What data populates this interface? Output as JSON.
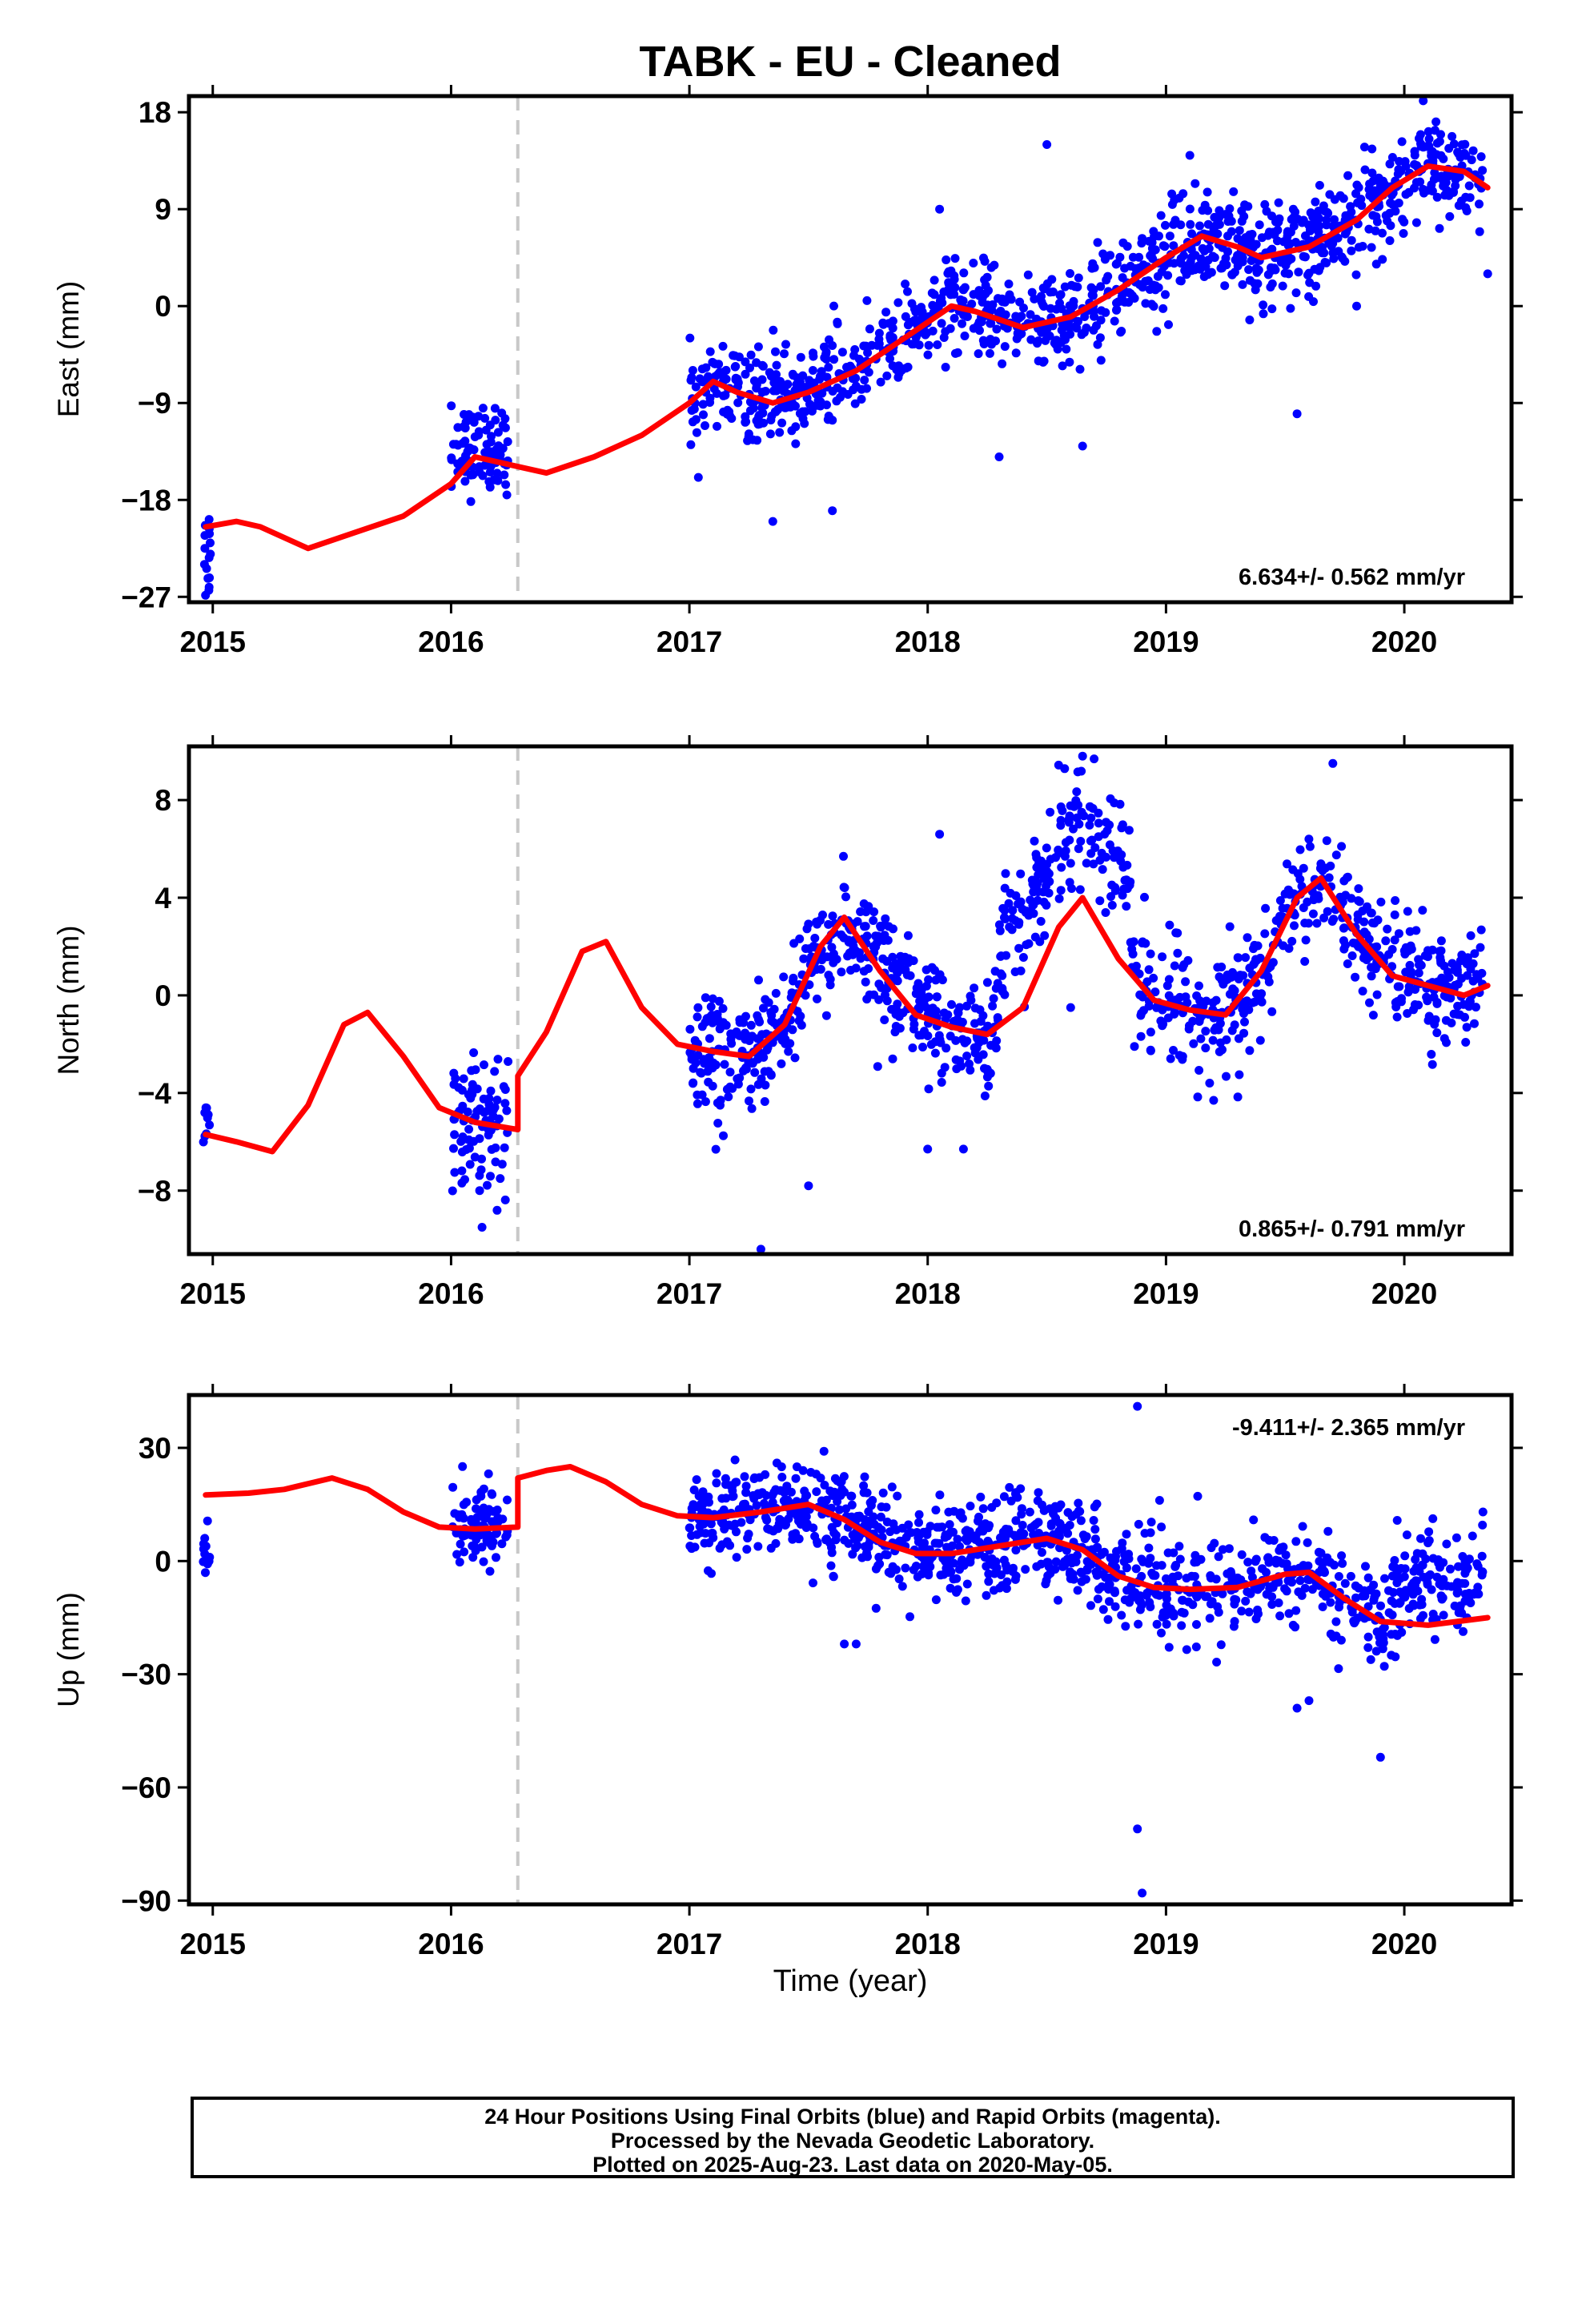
{
  "title": "TABK  - EU - Cleaned",
  "xlabel": "Time (year)",
  "colors": {
    "points": "#0000ff",
    "fit": "#ff0000",
    "offset_line": "#c8c8c8",
    "axes": "#000000"
  },
  "footer": {
    "line1": "24 Hour Positions Using Final Orbits (blue) and Rapid Orbits (magenta).",
    "line2": "Processed by the Nevada Geodetic Laboratory.",
    "line3": "Plotted on 2025-Aug-23. Last data on 2020-May-05."
  },
  "chart_data": [
    {
      "type": "scatter",
      "ylabel": "East (mm)",
      "rate_text": "6.634+/- 0.562 mm/yr",
      "xlim": [
        2014.9,
        2020.45
      ],
      "ylim": [
        -27.5,
        19.5
      ],
      "yticks": [
        18,
        9,
        0,
        -9,
        -18,
        -27
      ],
      "ytick_labels": [
        "18",
        "9",
        "0",
        "−9",
        "−18",
        "−27"
      ],
      "xticks": [
        2015,
        2016,
        2017,
        2018,
        2019,
        2020
      ],
      "xtick_labels": [
        "2015",
        "2016",
        "2017",
        "2018",
        "2019",
        "2020"
      ],
      "offset_epoch": 2016.28,
      "series": [
        {
          "values": [
            [
              2014.97,
              -20.5
            ],
            [
              2015.1,
              -20.0
            ],
            [
              2015.2,
              -20.5
            ],
            [
              2015.4,
              -22.5
            ],
            [
              2015.6,
              -21.0
            ],
            [
              2015.8,
              -19.5
            ],
            [
              2016.0,
              -16.5
            ],
            [
              2016.1,
              -14.0
            ],
            [
              2016.2,
              -14.5
            ],
            [
              2016.3,
              -15.0
            ],
            [
              2016.4,
              -15.5
            ],
            [
              2016.6,
              -14.0
            ],
            [
              2016.8,
              -12.0
            ],
            [
              2017.0,
              -9.0
            ],
            [
              2017.1,
              -7.0
            ],
            [
              2017.2,
              -8.0
            ],
            [
              2017.35,
              -9.0
            ],
            [
              2017.5,
              -8.0
            ],
            [
              2017.7,
              -6.0
            ],
            [
              2017.9,
              -3.0
            ],
            [
              2018.1,
              0.0
            ],
            [
              2018.2,
              -0.5
            ],
            [
              2018.4,
              -2.0
            ],
            [
              2018.6,
              -1.0
            ],
            [
              2018.8,
              1.5
            ],
            [
              2019.0,
              4.5
            ],
            [
              2019.15,
              6.5
            ],
            [
              2019.3,
              5.5
            ],
            [
              2019.4,
              4.5
            ],
            [
              2019.6,
              5.5
            ],
            [
              2019.8,
              8.0
            ],
            [
              2019.95,
              11.0
            ],
            [
              2020.1,
              13.0
            ],
            [
              2020.25,
              12.5
            ],
            [
              2020.35,
              11.0
            ]
          ]
        }
      ],
      "scatter_groups": [
        {
          "t0": 2014.96,
          "t1": 2014.99,
          "n": 16,
          "trend": [
            -24.0,
            -22.0
          ],
          "noise": 2.5
        },
        {
          "t0": 2016.0,
          "t1": 2016.24,
          "n": 90,
          "trend": [
            -13.5,
            -13.0
          ],
          "noise": 2.0
        },
        {
          "t0": 2017.0,
          "t1": 2020.33,
          "n": 1100,
          "trend": "fit",
          "noise": 2.2
        }
      ],
      "outliers": [
        [
          2017.35,
          -20.0
        ],
        [
          2017.6,
          -19.0
        ],
        [
          2018.5,
          15.0
        ],
        [
          2018.3,
          -14.0
        ],
        [
          2018.65,
          -13.0
        ],
        [
          2019.55,
          -10.0
        ],
        [
          2019.1,
          14.0
        ],
        [
          2020.35,
          3.0
        ],
        [
          2018.05,
          9.0
        ],
        [
          2019.8,
          0.0
        ]
      ]
    },
    {
      "type": "scatter",
      "ylabel": "North (mm)",
      "rate_text": "0.865+/- 0.791 mm/yr",
      "xlim": [
        2014.9,
        2020.45
      ],
      "ylim": [
        -10.6,
        10.2
      ],
      "yticks": [
        8,
        4,
        0,
        -4,
        -8
      ],
      "ytick_labels": [
        "8",
        "4",
        "0",
        "−4",
        "−8"
      ],
      "xticks": [
        2015,
        2016,
        2017,
        2018,
        2019,
        2020
      ],
      "xtick_labels": [
        "2015",
        "2016",
        "2017",
        "2018",
        "2019",
        "2020"
      ],
      "offset_epoch": 2016.28,
      "series": [
        {
          "values": [
            [
              2014.97,
              -5.7
            ],
            [
              2015.1,
              -6.0
            ],
            [
              2015.25,
              -6.4
            ],
            [
              2015.4,
              -4.5
            ],
            [
              2015.55,
              -1.2
            ],
            [
              2015.65,
              -0.7
            ],
            [
              2015.8,
              -2.5
            ],
            [
              2015.95,
              -4.6
            ],
            [
              2016.1,
              -5.2
            ],
            [
              2016.28,
              -5.5
            ],
            [
              2016.28,
              -3.3
            ],
            [
              2016.4,
              -1.5
            ],
            [
              2016.55,
              1.8
            ],
            [
              2016.65,
              2.2
            ],
            [
              2016.8,
              -0.5
            ],
            [
              2016.95,
              -2.0
            ],
            [
              2017.1,
              -2.3
            ],
            [
              2017.25,
              -2.5
            ],
            [
              2017.4,
              -1.2
            ],
            [
              2017.55,
              2.0
            ],
            [
              2017.65,
              3.2
            ],
            [
              2017.8,
              1.0
            ],
            [
              2017.95,
              -0.8
            ],
            [
              2018.1,
              -1.3
            ],
            [
              2018.25,
              -1.6
            ],
            [
              2018.4,
              -0.5
            ],
            [
              2018.55,
              2.8
            ],
            [
              2018.65,
              4.0
            ],
            [
              2018.8,
              1.5
            ],
            [
              2018.95,
              -0.2
            ],
            [
              2019.1,
              -0.6
            ],
            [
              2019.25,
              -0.8
            ],
            [
              2019.4,
              1.0
            ],
            [
              2019.55,
              4.0
            ],
            [
              2019.65,
              4.8
            ],
            [
              2019.8,
              2.5
            ],
            [
              2019.95,
              0.8
            ],
            [
              2020.1,
              0.4
            ],
            [
              2020.25,
              0.0
            ],
            [
              2020.35,
              0.4
            ]
          ]
        }
      ],
      "scatter_groups": [
        {
          "t0": 2014.96,
          "t1": 2014.99,
          "n": 10,
          "trend": [
            -5.2,
            -4.6
          ],
          "noise": 0.7
        },
        {
          "t0": 2016.0,
          "t1": 2016.24,
          "n": 90,
          "trend": [
            -5.0,
            -5.5
          ],
          "noise": 1.3
        },
        {
          "t0": 2017.0,
          "t1": 2020.33,
          "n": 1100,
          "trend": "fit",
          "noise": 1.2,
          "shift": [
            [
              2018.3,
              2018.85,
              3.5
            ]
          ]
        }
      ],
      "outliers": [
        [
          2017.3,
          -10.4
        ],
        [
          2018.0,
          -6.3
        ],
        [
          2018.15,
          -6.3
        ],
        [
          2018.6,
          -0.5
        ],
        [
          2019.7,
          9.5
        ],
        [
          2018.65,
          9.8
        ],
        [
          2017.5,
          -7.8
        ],
        [
          2016.13,
          -9.5
        ],
        [
          2019.2,
          -4.3
        ],
        [
          2018.05,
          6.6
        ]
      ]
    },
    {
      "type": "scatter",
      "ylabel": "Up (mm)",
      "rate_text": "-9.411+/- 2.365 mm/yr",
      "xlim": [
        2014.9,
        2020.45
      ],
      "ylim": [
        -91,
        44
      ],
      "yticks": [
        30,
        0,
        -30,
        -60,
        -90
      ],
      "ytick_labels": [
        "30",
        "0",
        "−30",
        "−60",
        "−90"
      ],
      "xticks": [
        2015,
        2016,
        2017,
        2018,
        2019,
        2020
      ],
      "xtick_labels": [
        "2015",
        "2016",
        "2017",
        "2018",
        "2019",
        "2020"
      ],
      "offset_epoch": 2016.28,
      "series": [
        {
          "values": [
            [
              2014.97,
              17.5
            ],
            [
              2015.15,
              18.0
            ],
            [
              2015.3,
              19.0
            ],
            [
              2015.5,
              22.0
            ],
            [
              2015.65,
              19.0
            ],
            [
              2015.8,
              13.0
            ],
            [
              2015.95,
              9.0
            ],
            [
              2016.1,
              8.5
            ],
            [
              2016.28,
              9.0
            ],
            [
              2016.28,
              22.0
            ],
            [
              2016.4,
              24.0
            ],
            [
              2016.5,
              25.0
            ],
            [
              2016.65,
              21.0
            ],
            [
              2016.8,
              15.0
            ],
            [
              2016.95,
              12.0
            ],
            [
              2017.1,
              11.5
            ],
            [
              2017.3,
              13.0
            ],
            [
              2017.5,
              15.0
            ],
            [
              2017.65,
              11.0
            ],
            [
              2017.8,
              5.0
            ],
            [
              2017.95,
              2.0
            ],
            [
              2018.1,
              2.0
            ],
            [
              2018.3,
              4.0
            ],
            [
              2018.5,
              6.0
            ],
            [
              2018.65,
              3.0
            ],
            [
              2018.8,
              -4.0
            ],
            [
              2018.95,
              -7.0
            ],
            [
              2019.1,
              -7.5
            ],
            [
              2019.3,
              -7.0
            ],
            [
              2019.5,
              -3.5
            ],
            [
              2019.6,
              -3.0
            ],
            [
              2019.75,
              -10.0
            ],
            [
              2019.9,
              -16.0
            ],
            [
              2020.1,
              -17.0
            ],
            [
              2020.35,
              -15.0
            ]
          ]
        }
      ],
      "scatter_groups": [
        {
          "t0": 2014.96,
          "t1": 2014.99,
          "n": 12,
          "trend": [
            2.0,
            6.0
          ],
          "noise": 4.0
        },
        {
          "t0": 2016.0,
          "t1": 2016.24,
          "n": 90,
          "trend": [
            10.0,
            10.0
          ],
          "noise": 5.5
        },
        {
          "t0": 2017.0,
          "t1": 2020.33,
          "n": 1100,
          "trend": "fit",
          "noise": 6.5,
          "shift": [
            [
              2019.95,
              2020.33,
              11.0
            ]
          ]
        }
      ],
      "outliers": [
        [
          2018.88,
          41.0
        ],
        [
          2018.88,
          -71.0
        ],
        [
          2018.9,
          -88.0
        ],
        [
          2019.9,
          -52.0
        ],
        [
          2017.65,
          -22.0
        ],
        [
          2017.7,
          -22.0
        ],
        [
          2019.6,
          -37.0
        ],
        [
          2019.55,
          -39.0
        ],
        [
          2020.33,
          13.0
        ]
      ]
    }
  ]
}
